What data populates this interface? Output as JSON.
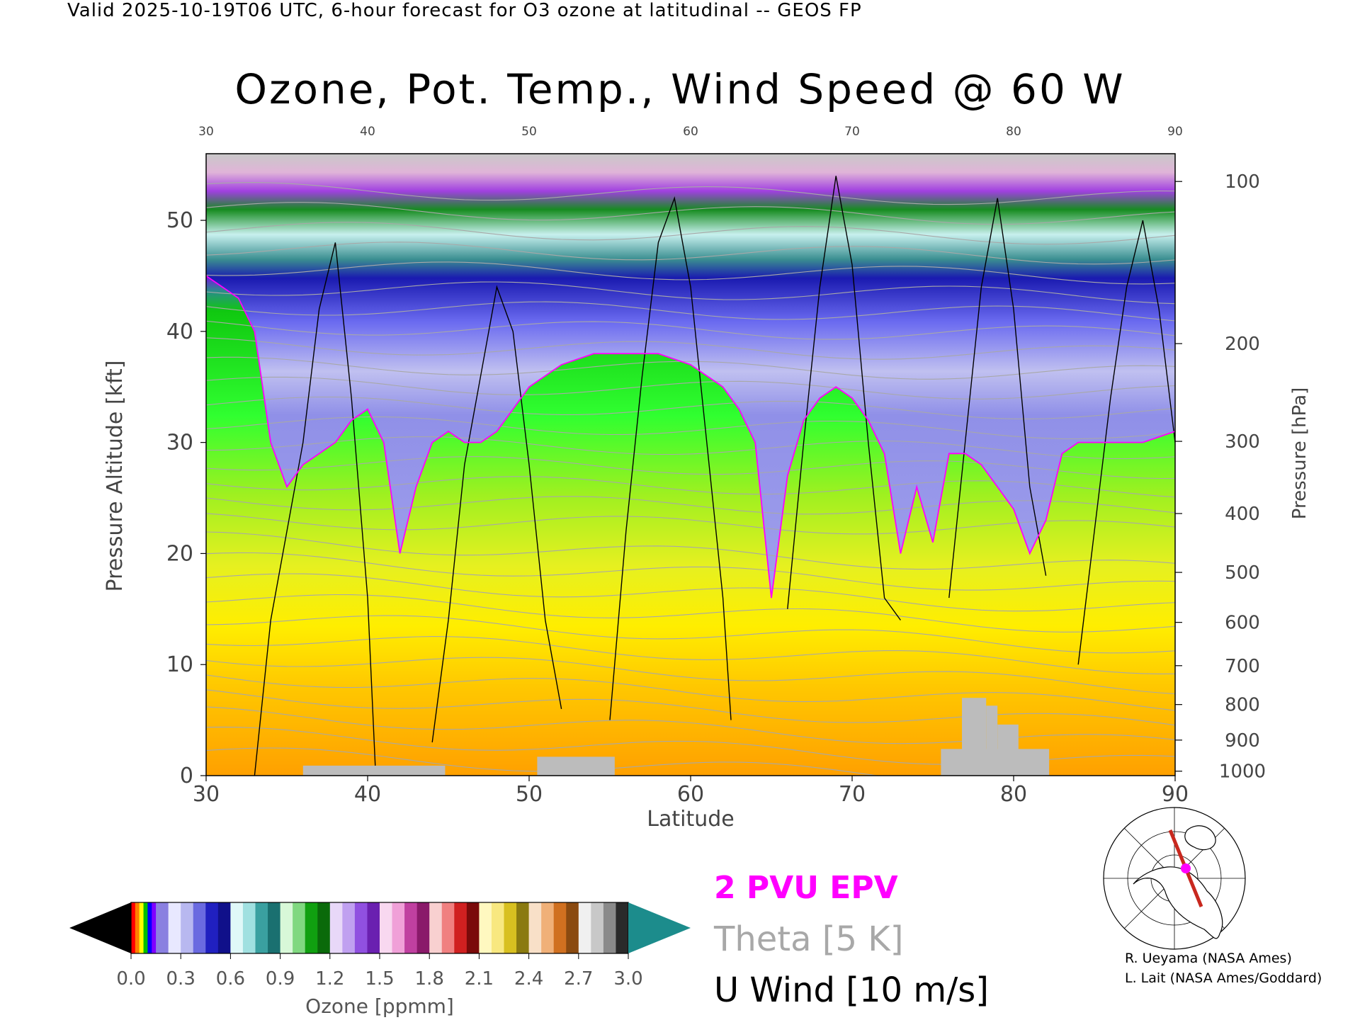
{
  "header": {
    "valid_line": "Valid 2025-10-19T06 UTC, 6-hour forecast for O3 ozone at latitudinal -- GEOS FP"
  },
  "chart_data": {
    "type": "heatmap",
    "title": "Ozone, Pot. Temp., Wind Speed @ 60 W",
    "xlabel": "Latitude",
    "ylabel": "Pressure Altitude [kft]",
    "y2label": "Pressure [hPa]",
    "xlim": [
      30,
      90
    ],
    "ylim": [
      0,
      56
    ],
    "x_ticks": [
      30,
      40,
      50,
      60,
      70,
      80,
      90
    ],
    "x_tick_labels": [
      "30",
      "40",
      "50",
      "60",
      "70",
      "80",
      "90"
    ],
    "top_tick_labels": [
      "30",
      "40",
      "50",
      "60",
      "70",
      "80",
      "90"
    ],
    "y_ticks": [
      0,
      10,
      20,
      30,
      40,
      50
    ],
    "y_tick_labels": [
      "0",
      "10",
      "20",
      "30",
      "40",
      "50"
    ],
    "pressure_ticks": [
      {
        "label": "100",
        "kft": 53.5
      },
      {
        "label": "200",
        "kft": 38.9
      },
      {
        "label": "300",
        "kft": 30.1
      },
      {
        "label": "400",
        "kft": 23.6
      },
      {
        "label": "500",
        "kft": 18.3
      },
      {
        "label": "600",
        "kft": 13.8
      },
      {
        "label": "700",
        "kft": 9.9
      },
      {
        "label": "800",
        "kft": 6.4
      },
      {
        "label": "900",
        "kft": 3.2
      },
      {
        "label": "1000",
        "kft": 0.4
      }
    ],
    "ozone_tropopause_kft": [
      [
        30,
        45.0
      ],
      [
        31,
        44.0
      ],
      [
        32,
        43.0
      ],
      [
        33,
        40.0
      ],
      [
        34,
        30.0
      ],
      [
        35,
        26.0
      ],
      [
        36,
        28.0
      ],
      [
        37,
        29.0
      ],
      [
        38,
        30.0
      ],
      [
        39,
        32.0
      ],
      [
        40,
        33.0
      ],
      [
        41,
        30.0
      ],
      [
        42,
        20.0
      ],
      [
        43,
        26.0
      ],
      [
        44,
        30.0
      ],
      [
        45,
        31.0
      ],
      [
        46,
        30.0
      ],
      [
        47,
        30.0
      ],
      [
        48,
        31.0
      ],
      [
        49,
        33.0
      ],
      [
        50,
        35.0
      ],
      [
        52,
        37.0
      ],
      [
        54,
        38.0
      ],
      [
        56,
        38.0
      ],
      [
        58,
        38.0
      ],
      [
        60,
        37.0
      ],
      [
        62,
        35.0
      ],
      [
        63,
        33.0
      ],
      [
        64,
        30.0
      ],
      [
        65,
        16.0
      ],
      [
        66,
        27.0
      ],
      [
        67,
        32.0
      ],
      [
        68,
        34.0
      ],
      [
        69,
        35.0
      ],
      [
        70,
        34.0
      ],
      [
        71,
        32.0
      ],
      [
        72,
        29.0
      ],
      [
        73,
        20.0
      ],
      [
        74,
        26.0
      ],
      [
        75,
        21.0
      ],
      [
        76,
        29.0
      ],
      [
        77,
        29.0
      ],
      [
        78,
        28.0
      ],
      [
        79,
        26.0
      ],
      [
        80,
        24.0
      ],
      [
        81,
        20.0
      ],
      [
        82,
        23.0
      ],
      [
        83,
        29.0
      ],
      [
        84,
        30.0
      ],
      [
        86,
        30.0
      ],
      [
        88,
        30.0
      ],
      [
        90,
        31.0
      ]
    ],
    "ozone_colorbar": {
      "label": "Ozone [ppmm]",
      "min": 0.0,
      "max": 3.0,
      "ticks": [
        "0.0",
        "0.3",
        "0.6",
        "0.9",
        "1.2",
        "1.5",
        "1.8",
        "2.1",
        "2.4",
        "2.7",
        "3.0"
      ]
    },
    "terrain_blocks": [
      {
        "lat_start": 36,
        "lat_end": 44.8,
        "top_kft": 0.9
      },
      {
        "lat_start": 50.5,
        "lat_end": 55.3,
        "top_kft": 1.7
      },
      {
        "lat_start": 75.5,
        "lat_end": 82.2,
        "top_kft": 2.4
      },
      {
        "lat_start": 76.8,
        "lat_end": 78.3,
        "top_kft": 7.0
      },
      {
        "lat_start": 78.3,
        "lat_end": 79.0,
        "top_kft": 6.3
      },
      {
        "lat_start": 79.0,
        "lat_end": 80.3,
        "top_kft": 4.6
      }
    ],
    "legend": {
      "epv": "2 PVU EPV",
      "theta": "Theta [5 K]",
      "uwind": "U Wind [10 m/s]",
      "epv_color": "#ff00ff",
      "theta_color": "#a8a8a8",
      "uwind_color": "#000000"
    },
    "inset_map": {
      "section_line_color": "#c8281e",
      "marker_color": "#ff00ff"
    }
  },
  "credits": {
    "line1": "R. Ueyama (NASA Ames)",
    "line2": "L. Lait (NASA Ames/Goddard)"
  }
}
